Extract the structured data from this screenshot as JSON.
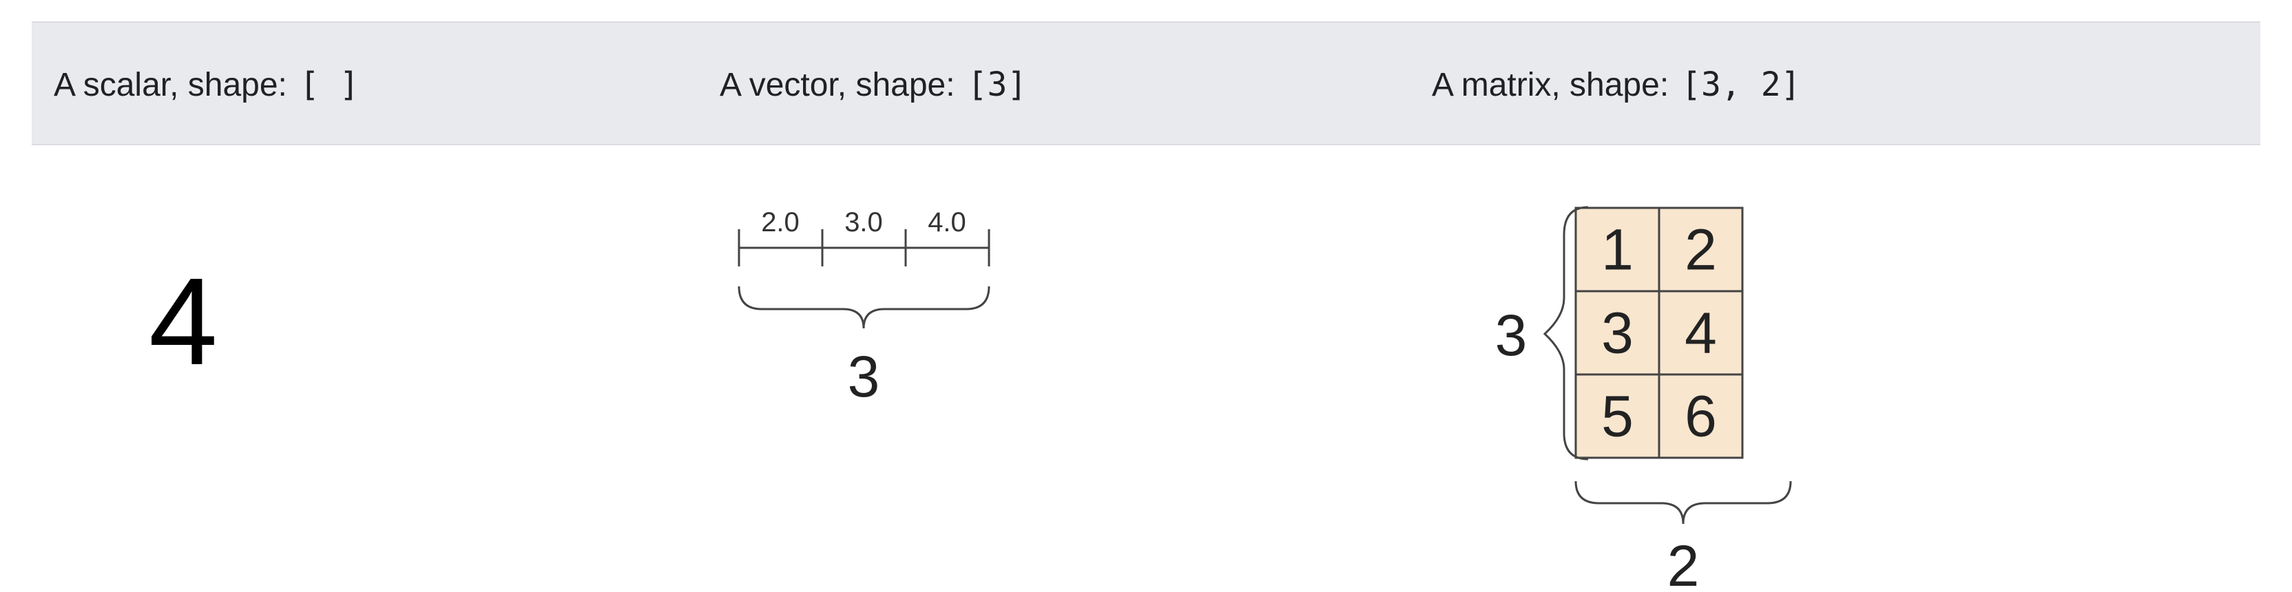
{
  "headers": [
    {
      "label": "A scalar, shape:",
      "shape": "[ ]"
    },
    {
      "label": "A vector, shape:",
      "shape": "[3]"
    },
    {
      "label": "A matrix, shape:",
      "shape": "[3,  2]"
    }
  ],
  "scalar": {
    "value": "4"
  },
  "vector": {
    "values": [
      "2.0",
      "3.0",
      "4.0"
    ],
    "length_label": "3"
  },
  "matrix": {
    "cells": [
      [
        "1",
        "2"
      ],
      [
        "3",
        "4"
      ],
      [
        "5",
        "6"
      ]
    ],
    "rows_label": "3",
    "cols_label": "2",
    "cell_fill": "#f9e6cf",
    "cell_stroke": "#444444"
  }
}
